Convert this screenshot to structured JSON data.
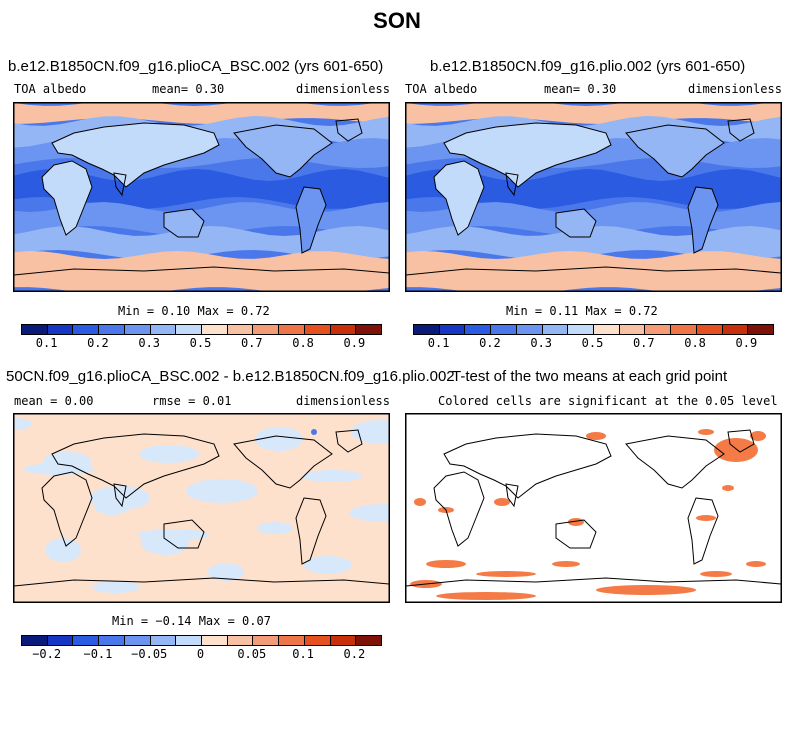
{
  "figure": {
    "title": "SON"
  },
  "panels": {
    "p1": {
      "title": "b.e12.B1850CN.f09_g16.plioCA_BSC.002 (yrs 601-650)",
      "left": "TOA albedo",
      "mid": "mean=   0.30",
      "right": "dimensionless",
      "minmax": "Min =   0.10 Max =   0.72"
    },
    "p2": {
      "title": "b.e12.B1850CN.f09_g16.plio.002 (yrs 601-650)",
      "left": "TOA albedo",
      "mid": "mean=   0.30",
      "right": "dimensionless",
      "minmax": "Min =   0.11 Max =   0.72"
    },
    "p3": {
      "title": "50CN.f09_g16.plioCA_BSC.002 - b.e12.B1850CN.f09_g16.plio.002",
      "left": "mean =   0.00",
      "mid": "rmse =   0.01",
      "right": "dimensionless",
      "minmax": "Min =  −0.14 Max =   0.07"
    },
    "p4": {
      "title": "T-test of the two means at each grid point",
      "sub": "Colored cells are significant at the 0.05 level"
    }
  },
  "colorbars": {
    "albedo": {
      "colors": [
        "#0a1a7a",
        "#1537c4",
        "#2a5be0",
        "#4a78ea",
        "#6b95f0",
        "#94b6f5",
        "#c3dbfa",
        "#fde1cc",
        "#f8c1a3",
        "#f49c78",
        "#ee7548",
        "#e4501f",
        "#c8300c",
        "#7f1208"
      ],
      "labels": [
        "0.1",
        "0.2",
        "0.3",
        "0.5",
        "0.7",
        "0.8",
        "0.9"
      ]
    },
    "diff": {
      "colors": [
        "#0a1a7a",
        "#1537c4",
        "#2a5be0",
        "#4a78ea",
        "#6b95f0",
        "#94b6f5",
        "#c3dbfa",
        "#fde1cc",
        "#f8c1a3",
        "#f49c78",
        "#ee7548",
        "#e4501f",
        "#c8300c",
        "#7f1208"
      ],
      "labels": [
        "−0.2",
        "−0.1",
        "−0.05",
        "0",
        "0.05",
        "0.1",
        "0.2"
      ]
    }
  },
  "colors": {
    "ocean_mid": "#4a78ea",
    "ocean_dark": "#2a5be0",
    "land_light": "#c3dbfa",
    "polar": "#f8c1a3",
    "diff_pos": "#fde1cc",
    "diff_neg": "#d7e8fb",
    "signif": "#f47a46"
  }
}
